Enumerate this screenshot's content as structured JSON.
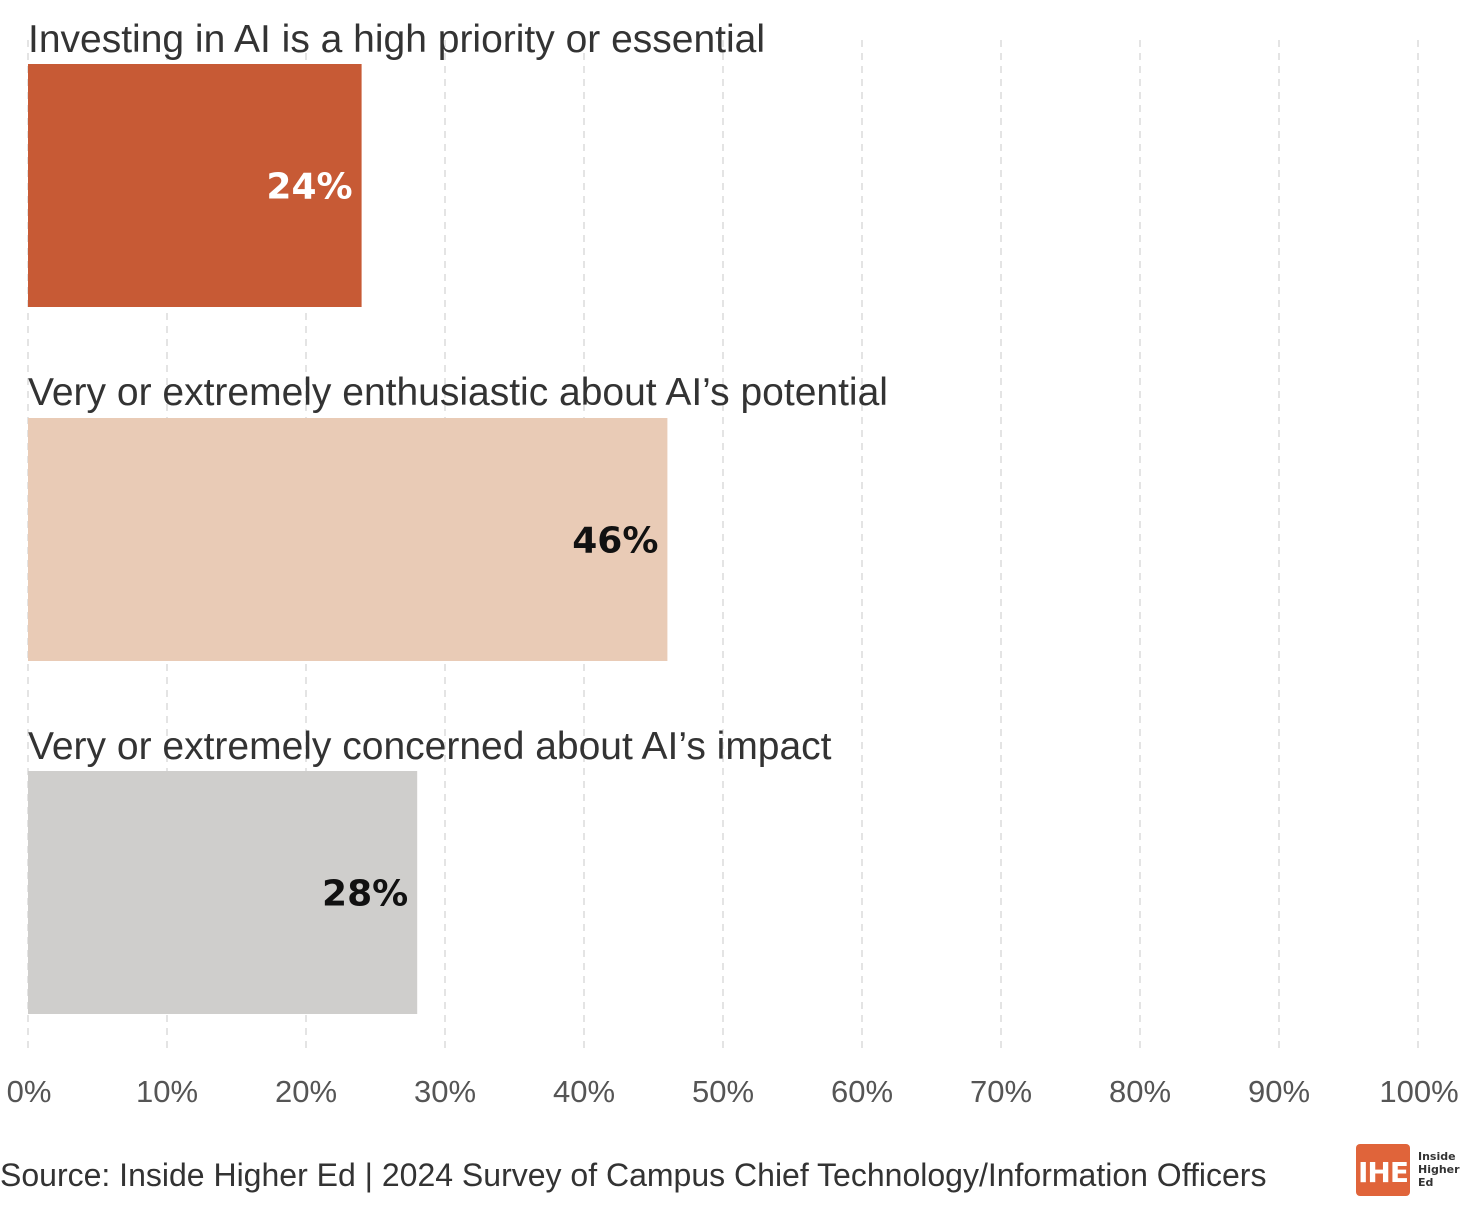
{
  "chart_data": {
    "type": "bar",
    "orientation": "horizontal",
    "categories": [
      "Investing in AI is a high priority or essential",
      "Very or extremely enthusiastic about AI’s potential",
      "Very or extremely concerned about AI’s impact"
    ],
    "values": [
      24,
      46,
      28
    ],
    "value_labels": [
      "24%",
      "46%",
      "28%"
    ],
    "colors": [
      "#c75a35",
      "#e9cbb6",
      "#cfcecc"
    ],
    "label_colors": [
      "#ffffff",
      "#111111",
      "#111111"
    ],
    "xlim": [
      0,
      100
    ],
    "xticks": [
      0,
      10,
      20,
      30,
      40,
      50,
      60,
      70,
      80,
      90,
      100
    ],
    "xtick_labels": [
      "0%",
      "10%",
      "20%",
      "30%",
      "40%",
      "50%",
      "60%",
      "70%",
      "80%",
      "90%",
      "100%"
    ],
    "grid": "vertical-dashed",
    "legend": "none"
  },
  "source": "Source: Inside Higher Ed | 2024 Survey of Campus Chief Technology/Information Officers",
  "logo": {
    "mark": "IHE",
    "wordmark": [
      "Inside",
      "Higher",
      "Ed"
    ],
    "color": "#e0643a"
  }
}
